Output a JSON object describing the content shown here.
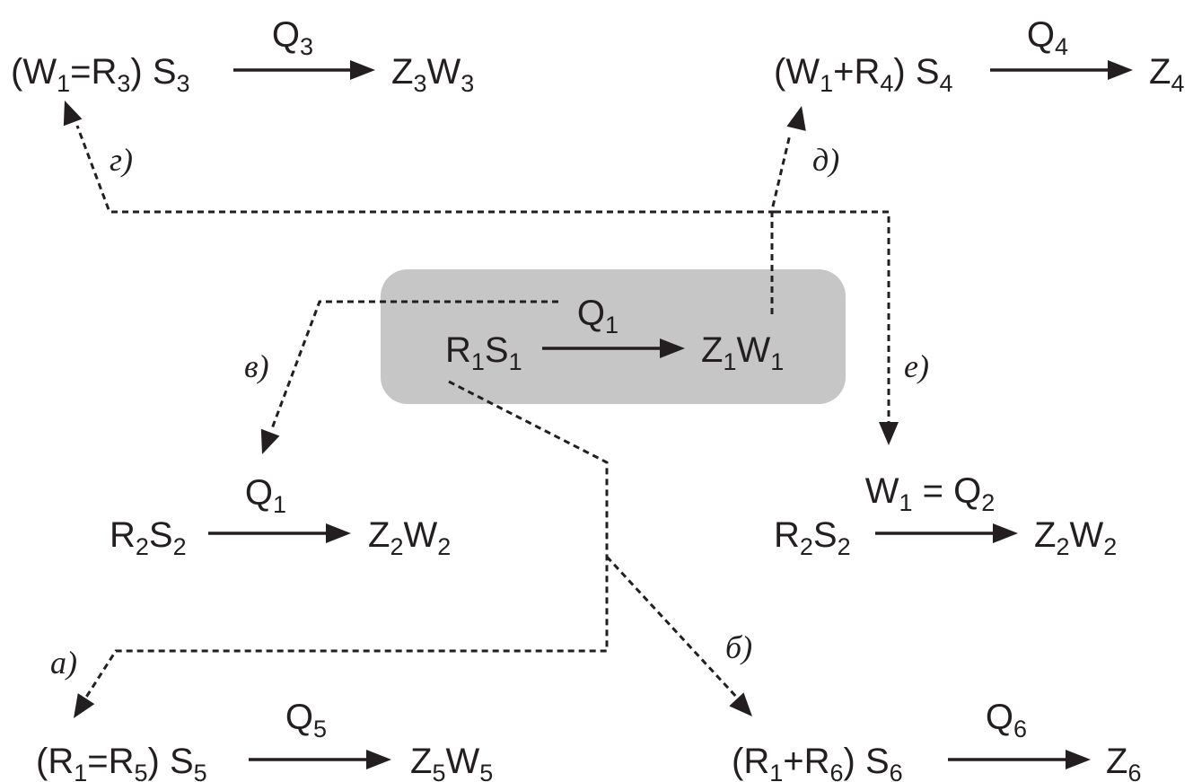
{
  "reactions": {
    "central": {
      "left": "R1S1",
      "over": "Q1",
      "right": "Z1W1"
    },
    "g": {
      "left": "(W1=R3) S3",
      "over": "Q3",
      "right": "Z3W3"
    },
    "d": {
      "left": "(W1+R4) S4",
      "over": "Q4",
      "right": "Z4"
    },
    "v": {
      "left": "R2S2",
      "over": "Q1",
      "right": "Z2W2"
    },
    "e": {
      "left": "R2S2",
      "over": "W1 = Q2",
      "right": "Z2W2"
    },
    "a": {
      "left": "(R1=R5) S5",
      "over": "Q5",
      "right": "Z5W5"
    },
    "b": {
      "left": "(R1+R6) S6",
      "over": "Q6",
      "right": "Z6"
    }
  },
  "labels": {
    "a": "а)",
    "b": "б)",
    "v": "в)",
    "g": "г)",
    "d": "д)",
    "e": "е)"
  }
}
